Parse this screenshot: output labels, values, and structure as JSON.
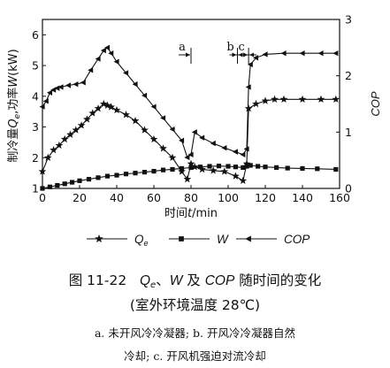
{
  "chart_data": {
    "type": "line",
    "x": {
      "label": "时间",
      "var": "t",
      "unit": "/min",
      "lim": [
        0,
        160
      ],
      "ticks": [
        0,
        20,
        40,
        60,
        80,
        100,
        120,
        140,
        160
      ]
    },
    "y_left": {
      "label_prefix": "制冷量",
      "label_q": "Q",
      "label_q_sub": "e",
      "label_mid": ",功率",
      "label_w": "W",
      "label_unit": "(kW)",
      "lim": [
        1,
        6.5
      ],
      "ticks": [
        1,
        2,
        3,
        4,
        5,
        6
      ]
    },
    "y_right": {
      "label": "COP",
      "lim": [
        0,
        3
      ],
      "ticks": [
        0,
        1,
        2,
        3
      ]
    },
    "annotations": [
      {
        "text": "a",
        "x": 80,
        "kind": "single"
      },
      {
        "text": "b",
        "x": 105,
        "kind": "double"
      },
      {
        "text": "c",
        "x": 111,
        "kind": "double"
      }
    ],
    "series": [
      {
        "name": "Q",
        "name_sub": "e",
        "axis": "left",
        "marker": "star",
        "x": [
          0,
          3,
          6,
          9,
          12,
          15,
          18,
          21,
          24,
          27,
          30,
          33,
          35,
          37,
          40,
          45,
          50,
          55,
          60,
          65,
          70,
          75,
          78,
          80,
          82,
          86,
          92,
          98,
          104,
          108,
          110,
          111,
          115,
          120,
          125,
          130,
          140,
          150,
          158
        ],
        "y": [
          1.55,
          2.0,
          2.25,
          2.4,
          2.6,
          2.75,
          2.9,
          3.05,
          3.25,
          3.45,
          3.6,
          3.75,
          3.7,
          3.65,
          3.55,
          3.4,
          3.2,
          2.9,
          2.6,
          2.3,
          2.0,
          1.55,
          1.3,
          1.8,
          1.7,
          1.62,
          1.58,
          1.55,
          1.4,
          1.25,
          1.8,
          3.6,
          3.75,
          3.85,
          3.9,
          3.9,
          3.9,
          3.9,
          3.9
        ]
      },
      {
        "name": "W",
        "axis": "left",
        "marker": "square",
        "x": [
          0,
          4,
          8,
          12,
          16,
          20,
          25,
          30,
          35,
          40,
          45,
          50,
          55,
          60,
          65,
          70,
          75,
          80,
          85,
          90,
          95,
          100,
          104,
          108,
          110,
          112,
          116,
          120,
          126,
          132,
          140,
          148,
          158
        ],
        "y": [
          1.0,
          1.05,
          1.1,
          1.15,
          1.2,
          1.25,
          1.3,
          1.35,
          1.4,
          1.43,
          1.47,
          1.5,
          1.53,
          1.56,
          1.6,
          1.62,
          1.65,
          1.68,
          1.7,
          1.72,
          1.73,
          1.72,
          1.7,
          1.68,
          1.72,
          1.75,
          1.72,
          1.7,
          1.68,
          1.66,
          1.65,
          1.64,
          1.62
        ]
      },
      {
        "name": "COP",
        "axis": "right",
        "marker": "triangle-left",
        "x": [
          0,
          2,
          4,
          6,
          8,
          10,
          14,
          18,
          22,
          26,
          30,
          33,
          35,
          37,
          40,
          45,
          50,
          55,
          60,
          65,
          70,
          75,
          78,
          80,
          82,
          86,
          92,
          98,
          104,
          108,
          110,
          111,
          112,
          115,
          120,
          130,
          140,
          150,
          158
        ],
        "y": [
          1.45,
          1.55,
          1.7,
          1.75,
          1.78,
          1.8,
          1.83,
          1.85,
          1.88,
          2.1,
          2.3,
          2.45,
          2.5,
          2.4,
          2.25,
          2.05,
          1.85,
          1.65,
          1.45,
          1.25,
          1.05,
          0.85,
          0.55,
          0.6,
          1.0,
          0.9,
          0.8,
          0.72,
          0.65,
          0.6,
          0.7,
          1.8,
          2.2,
          2.32,
          2.38,
          2.4,
          2.4,
          2.4,
          2.4
        ]
      }
    ]
  },
  "caption": {
    "fig_no": "图 11-22",
    "q": "Q",
    "q_sub": "e",
    "sep1": "、",
    "w": "W",
    "and": " 及 ",
    "cop": "COP",
    "rest": " 随时间的变化",
    "line2": "(室外环境温度 28℃)",
    "line3": "a. 未开风冷冷凝器; b. 开风冷冷凝器自然",
    "line4": "冷却; c. 开风机强迫对流冷却"
  }
}
